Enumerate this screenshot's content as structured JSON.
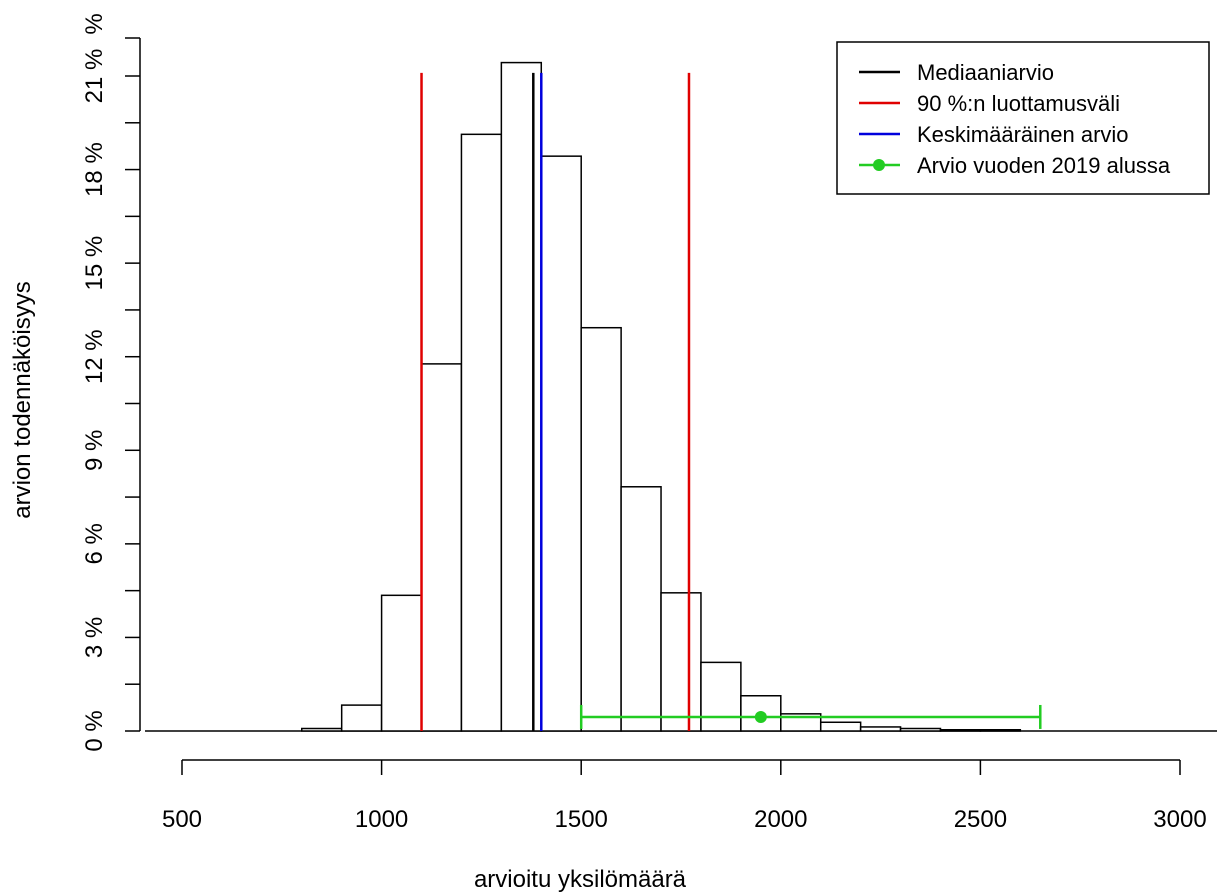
{
  "chart_data": {
    "type": "bar",
    "title": "",
    "xlabel": "arvioitu yksilömäärä",
    "ylabel": "arvion todennäköisyys",
    "xlim": [
      440,
      3000
    ],
    "ylim": [
      0,
      0.211
    ],
    "bin_width": 100,
    "bins": [
      {
        "x0": 800,
        "x1": 900,
        "value": 0.0008
      },
      {
        "x0": 900,
        "x1": 1000,
        "value": 0.0083
      },
      {
        "x0": 1000,
        "x1": 1100,
        "value": 0.0435
      },
      {
        "x0": 1100,
        "x1": 1200,
        "value": 0.1177
      },
      {
        "x0": 1200,
        "x1": 1300,
        "value": 0.1913
      },
      {
        "x0": 1300,
        "x1": 1400,
        "value": 0.2143
      },
      {
        "x0": 1400,
        "x1": 1500,
        "value": 0.1843
      },
      {
        "x0": 1500,
        "x1": 1600,
        "value": 0.1293
      },
      {
        "x0": 1600,
        "x1": 1700,
        "value": 0.0783
      },
      {
        "x0": 1700,
        "x1": 1800,
        "value": 0.0443
      },
      {
        "x0": 1800,
        "x1": 1900,
        "value": 0.022
      },
      {
        "x0": 1900,
        "x1": 2000,
        "value": 0.0113
      },
      {
        "x0": 2000,
        "x1": 2100,
        "value": 0.0055
      },
      {
        "x0": 2100,
        "x1": 2200,
        "value": 0.0028
      },
      {
        "x0": 2200,
        "x1": 2300,
        "value": 0.0013
      },
      {
        "x0": 2300,
        "x1": 2400,
        "value": 0.0008
      },
      {
        "x0": 2400,
        "x1": 2500,
        "value": 0.0004
      },
      {
        "x0": 2500,
        "x1": 2600,
        "value": 0.0004
      }
    ],
    "x_ticks": [
      {
        "value": 500,
        "label": "500"
      },
      {
        "value": 1000,
        "label": "1000"
      },
      {
        "value": 1500,
        "label": "1500"
      },
      {
        "value": 2000,
        "label": "2000"
      },
      {
        "value": 2500,
        "label": "2500"
      },
      {
        "value": 3000,
        "label": "3000"
      }
    ],
    "y_ticks": [
      {
        "value": 0.0,
        "label": "0 %"
      },
      {
        "value": 0.015,
        "label": ""
      },
      {
        "value": 0.03,
        "label": "3 %"
      },
      {
        "value": 0.045,
        "label": ""
      },
      {
        "value": 0.06,
        "label": "6 %"
      },
      {
        "value": 0.075,
        "label": ""
      },
      {
        "value": 0.09,
        "label": "9 %"
      },
      {
        "value": 0.105,
        "label": ""
      },
      {
        "value": 0.12,
        "label": "12 %"
      },
      {
        "value": 0.135,
        "label": ""
      },
      {
        "value": 0.15,
        "label": "15 %"
      },
      {
        "value": 0.165,
        "label": ""
      },
      {
        "value": 0.18,
        "label": "18 %"
      },
      {
        "value": 0.195,
        "label": ""
      },
      {
        "value": 0.21,
        "label": "21 %"
      }
    ],
    "y_top_label": "%",
    "vlines": [
      {
        "name": "Mediaaniarvio",
        "x": 1380,
        "color": "#000000"
      },
      {
        "name": "90 %:n luottamusväli",
        "x": 1100,
        "color": "#e00000"
      },
      {
        "name": "90 %:n luottamusväli",
        "x": 1770,
        "color": "#e00000"
      },
      {
        "name": "Keskimääräinen arvio",
        "x": 1400,
        "color": "#0000dd"
      }
    ],
    "vline_top": 0.211,
    "interval_2019": {
      "name": "Arvio vuoden 2019 alussa",
      "point": 1950,
      "low": 1500,
      "high": 2650,
      "y": 0.0045,
      "color": "#22cc22"
    },
    "legend": {
      "position": "top-right",
      "entries": [
        {
          "label": "Mediaaniarvio",
          "color": "#000000",
          "marker": false
        },
        {
          "label": "90 %:n luottamusväli",
          "color": "#e00000",
          "marker": false
        },
        {
          "label": "Keskimääräinen arvio",
          "color": "#0000dd",
          "marker": false
        },
        {
          "label": "Arvio vuoden 2019 alussa",
          "color": "#22cc22",
          "marker": true
        }
      ]
    }
  }
}
